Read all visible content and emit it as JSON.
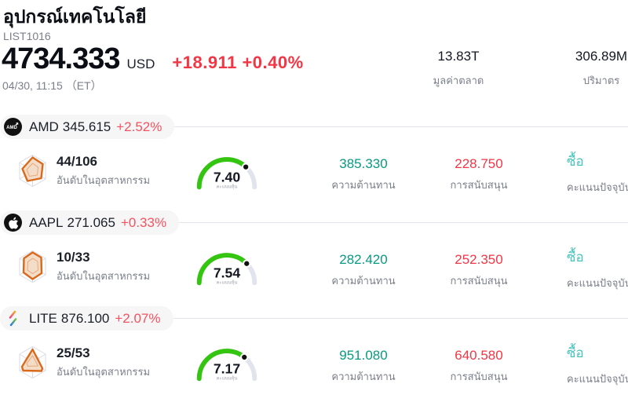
{
  "header": {
    "title": "อุปกรณ์เทคโนโลยี",
    "symbol": "LIST1016",
    "price": "4734.333",
    "currency": "USD",
    "change": "+18.911 +0.40%",
    "datetime": "04/30, 11:15 （ET）",
    "stats": [
      {
        "value": "13.83T",
        "label": "มูลค่าตลาด"
      },
      {
        "value": "306.89M",
        "label": "ปริมาตร"
      }
    ]
  },
  "colors": {
    "accent_red": "#f23645",
    "row_change_red": "#f4525f",
    "resistance_green": "#089981",
    "buy_teal": "#46c3bb",
    "gauge_green": "#33c50f",
    "gauge_track": "#e1e4ec",
    "muted_text": "#7b7f8a",
    "pill_bg": "#f6f6f7",
    "radar_orange": "#d96a1d"
  },
  "rows": [
    {
      "logo": "amd-logo",
      "name": "AMD",
      "price": "345.615",
      "change": "+2.52%",
      "rank": "44/106",
      "rank_label": "อันดับในอุตสาหกรรม",
      "score": 7.4,
      "score_display": "7.40",
      "score_label": "คะแนนหุ้น",
      "resistance": "385.330",
      "resistance_label": "ความต้านทาน",
      "support": "228.750",
      "support_label": "การสนับสนุน",
      "rating": "ซื้อ",
      "rating_label": "คะแนนปัจจุบัน"
    },
    {
      "logo": "apple-logo",
      "name": "AAPL",
      "price": "271.065",
      "change": "+0.33%",
      "rank": "10/33",
      "rank_label": "อันดับในอุตสาหกรรม",
      "score": 7.54,
      "score_display": "7.54",
      "score_label": "คะแนนหุ้น",
      "resistance": "282.420",
      "resistance_label": "ความต้านทาน",
      "support": "252.350",
      "support_label": "การสนับสนุน",
      "rating": "ซื้อ",
      "rating_label": "คะแนนปัจจุบัน"
    },
    {
      "logo": "lite-logo",
      "name": "LITE",
      "price": "876.100",
      "change": "+2.07%",
      "rank": "25/53",
      "rank_label": "อันดับในอุตสาหกรรม",
      "score": 7.17,
      "score_display": "7.17",
      "score_label": "คะแนนหุ้น",
      "resistance": "951.080",
      "resistance_label": "ความต้านทาน",
      "support": "640.580",
      "support_label": "การสนับสนุน",
      "rating": "ซื้อ",
      "rating_label": "คะแนนปัจจุบัน"
    }
  ]
}
